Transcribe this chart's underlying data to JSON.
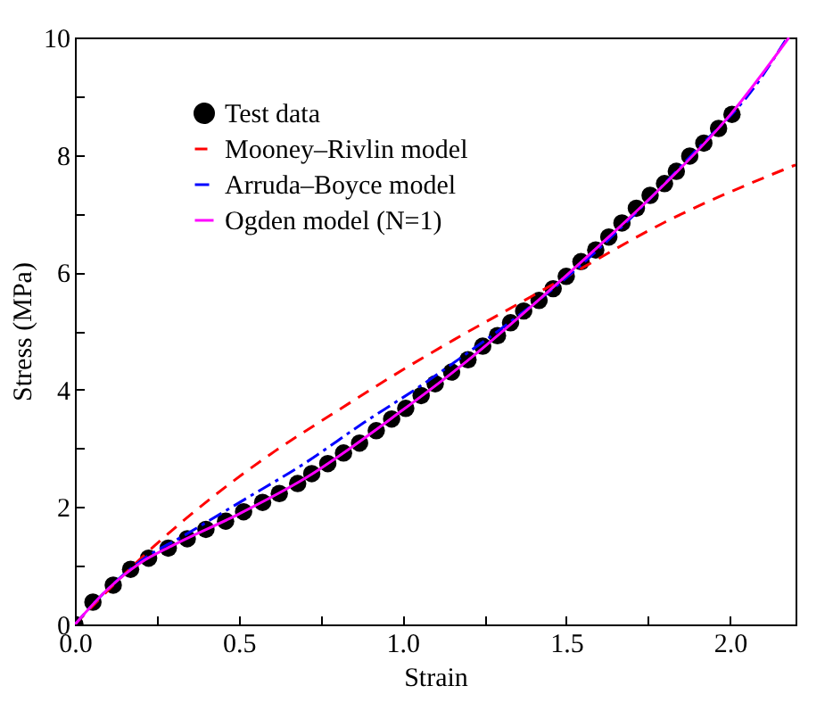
{
  "chart_data": {
    "type": "line",
    "xlabel": "Strain",
    "ylabel": "Stress (MPa)",
    "xlim": [
      0,
      2.2
    ],
    "xticks": [
      {
        "value": 0,
        "label": "0.0"
      },
      {
        "value": 0.25,
        "label": null
      },
      {
        "value": 0.5,
        "label": "0.5"
      },
      {
        "value": 0.75,
        "label": null
      },
      {
        "value": 1,
        "label": "1.0"
      },
      {
        "value": 1.25,
        "label": null
      },
      {
        "value": 1.5,
        "label": "1.5"
      },
      {
        "value": 1.75,
        "label": null
      },
      {
        "value": 2,
        "label": "2.0"
      }
    ],
    "ylim": [
      0,
      10
    ],
    "yticks": [
      0,
      {
        "value": 1,
        "label": null
      },
      2,
      {
        "value": 3,
        "label": null
      },
      4,
      {
        "value": 5,
        "label": null
      },
      6,
      {
        "value": 7,
        "label": null
      },
      8,
      {
        "value": 9,
        "label": null
      },
      10
    ],
    "grid": false,
    "legend": "top left",
    "series": [
      {
        "name": "Test data",
        "type": "scatter",
        "marker": "circle",
        "color": "#000000",
        "x": [
          0,
          0.055,
          0.117,
          0.17,
          0.225,
          0.285,
          0.343,
          0.4,
          0.46,
          0.515,
          0.573,
          0.624,
          0.68,
          0.723,
          0.772,
          0.82,
          0.869,
          0.92,
          0.967,
          1.01,
          1.057,
          1.1,
          1.15,
          1.2,
          1.245,
          1.29,
          1.33,
          1.37,
          1.417,
          1.46,
          1.5,
          1.545,
          1.59,
          1.63,
          1.67,
          1.714,
          1.756,
          1.8,
          1.836,
          1.877,
          1.92,
          1.965,
          2.006
        ],
        "values": [
          0,
          0.38,
          0.67,
          0.94,
          1.13,
          1.3,
          1.46,
          1.62,
          1.76,
          1.92,
          2.08,
          2.23,
          2.4,
          2.57,
          2.74,
          2.92,
          3.09,
          3.3,
          3.5,
          3.68,
          3.9,
          4.1,
          4.3,
          4.51,
          4.74,
          4.92,
          5.14,
          5.34,
          5.52,
          5.72,
          5.93,
          6.18,
          6.38,
          6.6,
          6.84,
          7.09,
          7.31,
          7.51,
          7.72,
          7.98,
          8.2,
          8.45,
          8.69
        ]
      },
      {
        "name": "Mooney–Rivlin model",
        "type": "line",
        "line_style": "dashed",
        "color": "#ff0000",
        "x": [
          0,
          0.117,
          0.245,
          0.427,
          0.61,
          0.79,
          0.975,
          1.157,
          1.35,
          1.5,
          1.8,
          2.2
        ],
        "values": [
          0,
          0.67,
          1.35,
          2.2,
          2.95,
          3.6,
          4.25,
          4.85,
          5.45,
          5.92,
          6.85,
          7.83
        ]
      },
      {
        "name": "Arruda–Boyce model",
        "type": "line",
        "line_style": "dashdot",
        "color": "#0000ff",
        "x": [
          0,
          0.1,
          0.2,
          0.335,
          0.518,
          0.7,
          0.88,
          1.065,
          1.157,
          1.34,
          1.52,
          1.7,
          1.89,
          2.07,
          2.175
        ],
        "values": [
          0,
          0.6,
          1.08,
          1.52,
          2.13,
          2.74,
          3.43,
          4.1,
          4.46,
          5.2,
          6.0,
          6.94,
          8.04,
          9.12,
          10
        ]
      },
      {
        "name": "Ogden model (N=1)",
        "type": "line",
        "line_style": "solid",
        "color": "#ff00ff",
        "x": [
          0,
          0.1,
          0.2,
          0.3,
          0.5,
          0.7,
          1.0,
          1.2,
          1.4,
          1.6,
          1.8,
          2.0,
          2.18
        ],
        "values": [
          0,
          0.6,
          1.05,
          1.35,
          1.88,
          2.48,
          3.65,
          4.5,
          5.45,
          6.45,
          7.5,
          8.68,
          10
        ]
      }
    ]
  }
}
